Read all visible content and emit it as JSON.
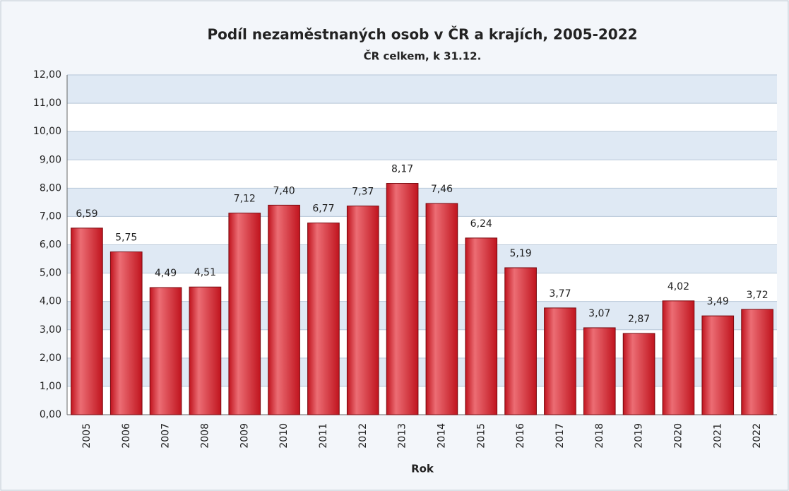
{
  "chart_data": {
    "type": "bar",
    "title": "Podíl nezaměstnaných osob v ČR a krajích, 2005-2022",
    "subtitle": "ČR celkem, k 31.12.",
    "x_label": "Rok",
    "categories": [
      "2005",
      "2006",
      "2007",
      "2008",
      "2009",
      "2010",
      "2011",
      "2012",
      "2013",
      "2014",
      "2015",
      "2016",
      "2017",
      "2018",
      "2019",
      "2020",
      "2021",
      "2022"
    ],
    "values": [
      6.59,
      5.75,
      4.49,
      4.51,
      7.12,
      7.4,
      6.77,
      7.37,
      8.17,
      7.46,
      6.24,
      5.19,
      3.77,
      3.07,
      2.87,
      4.02,
      3.49,
      3.72
    ],
    "value_labels": [
      "6,59",
      "5,75",
      "4,49",
      "4,51",
      "7,12",
      "7,40",
      "6,77",
      "7,37",
      "8,17",
      "7,46",
      "6,24",
      "5,19",
      "3,77",
      "3,07",
      "2,87",
      "4,02",
      "3,49",
      "3,72"
    ],
    "color": "#c0141e",
    "ylim": [
      0,
      12
    ],
    "yticks": [
      {
        "value": 0,
        "label": "0,00"
      },
      {
        "value": 1,
        "label": "1,00"
      },
      {
        "value": 2,
        "label": "2,00"
      },
      {
        "value": 3,
        "label": "3,00"
      },
      {
        "value": 4,
        "label": "4,00"
      },
      {
        "value": 5,
        "label": "5,00"
      },
      {
        "value": 6,
        "label": "6,00"
      },
      {
        "value": 7,
        "label": "7,00"
      },
      {
        "value": 8,
        "label": "8,00"
      },
      {
        "value": 9,
        "label": "9,00"
      },
      {
        "value": 10,
        "label": "10,00"
      },
      {
        "value": 11,
        "label": "11,00"
      },
      {
        "value": 12,
        "label": "12,00"
      }
    ],
    "grid": true
  }
}
